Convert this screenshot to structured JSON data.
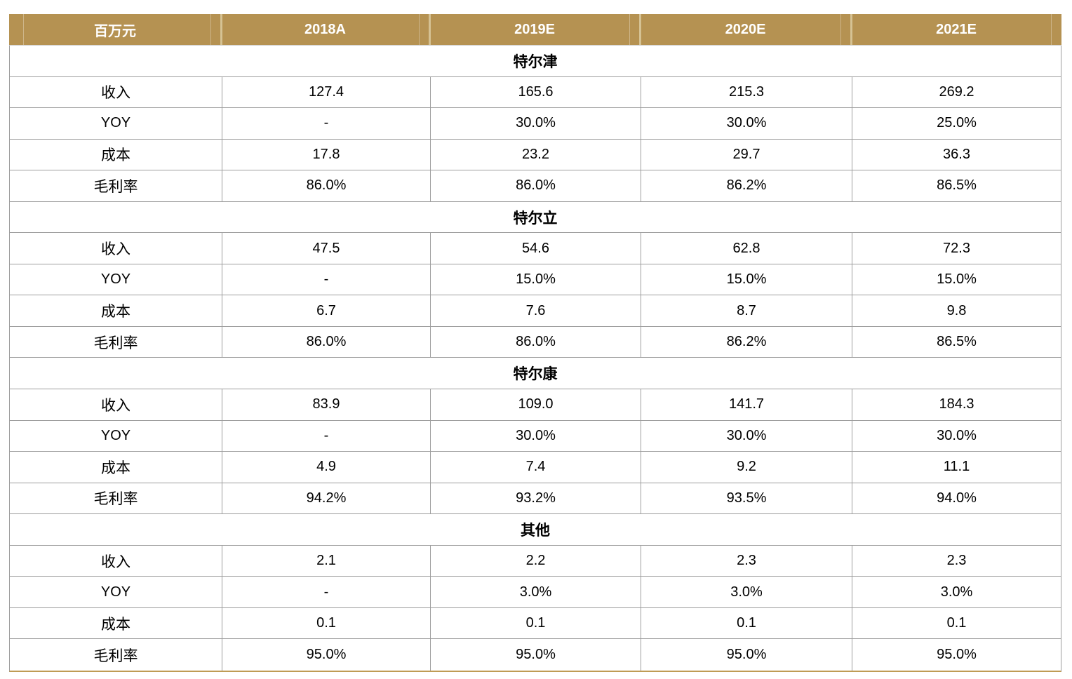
{
  "header": {
    "unit_label": "百万元",
    "columns": [
      "2018A",
      "2019E",
      "2020E",
      "2021E"
    ]
  },
  "sections": [
    {
      "title": "特尔津",
      "rows": [
        {
          "label": "收入",
          "values": [
            "127.4",
            "165.6",
            "215.3",
            "269.2"
          ]
        },
        {
          "label": "YOY",
          "values": [
            "-",
            "30.0%",
            "30.0%",
            "25.0%"
          ]
        },
        {
          "label": "成本",
          "values": [
            "17.8",
            "23.2",
            "29.7",
            "36.3"
          ]
        },
        {
          "label": "毛利率",
          "values": [
            "86.0%",
            "86.0%",
            "86.2%",
            "86.5%"
          ]
        }
      ]
    },
    {
      "title": "特尔立",
      "rows": [
        {
          "label": "收入",
          "values": [
            "47.5",
            "54.6",
            "62.8",
            "72.3"
          ]
        },
        {
          "label": "YOY",
          "values": [
            "-",
            "15.0%",
            "15.0%",
            "15.0%"
          ]
        },
        {
          "label": "成本",
          "values": [
            "6.7",
            "7.6",
            "8.7",
            "9.8"
          ]
        },
        {
          "label": "毛利率",
          "values": [
            "86.0%",
            "86.0%",
            "86.2%",
            "86.5%"
          ]
        }
      ]
    },
    {
      "title": "特尔康",
      "rows": [
        {
          "label": "收入",
          "values": [
            "83.9",
            "109.0",
            "141.7",
            "184.3"
          ]
        },
        {
          "label": "YOY",
          "values": [
            "-",
            "30.0%",
            "30.0%",
            "30.0%"
          ]
        },
        {
          "label": "成本",
          "values": [
            "4.9",
            "7.4",
            "9.2",
            "11.1"
          ]
        },
        {
          "label": "毛利率",
          "values": [
            "94.2%",
            "93.2%",
            "93.5%",
            "94.0%"
          ]
        }
      ]
    },
    {
      "title": "其他",
      "rows": [
        {
          "label": "收入",
          "values": [
            "2.1",
            "2.2",
            "2.3",
            "2.3"
          ]
        },
        {
          "label": "YOY",
          "values": [
            "-",
            "3.0%",
            "3.0%",
            "3.0%"
          ]
        },
        {
          "label": "成本",
          "values": [
            "0.1",
            "0.1",
            "0.1",
            "0.1"
          ]
        },
        {
          "label": "毛利率",
          "values": [
            "95.0%",
            "95.0%",
            "95.0%",
            "95.0%"
          ]
        }
      ]
    }
  ],
  "colors": {
    "header_bg": "#B59252",
    "header_text": "#FFFFFF",
    "header_divider_light": "#D5C294",
    "grid_line": "#9D9D9D",
    "bottom_border_gold": "#BF9B55",
    "body_text": "#000000",
    "page_background": "#FFFFFF"
  }
}
